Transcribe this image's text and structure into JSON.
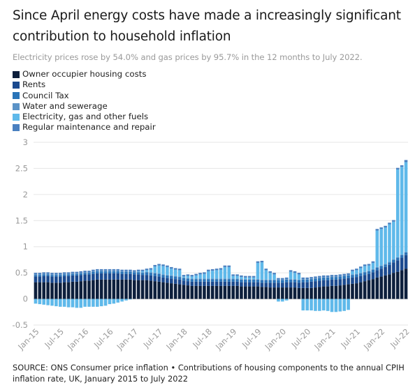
{
  "title": "Since April energy costs have made a increasingly significant contribution to household inflation",
  "subtitle": "Electricity prices rose by 54.0% and gas prices by 95.7% in the 12 months to July 2022.",
  "source": "SOURCE: ONS Consumer price inflation • Contributions of housing components to the annual CPIH inflation rate, UK, January 2015 to July 2022",
  "legend": [
    {
      "name": "Owner occupier housing costs",
      "color": "#0d1f3c"
    },
    {
      "name": "Rents",
      "color": "#1b4a8f"
    },
    {
      "name": "Council Tax",
      "color": "#2a74b8"
    },
    {
      "name": "Water and sewerage",
      "color": "#5b93c7"
    },
    {
      "name": "Electricity, gas and other fuels",
      "color": "#5fb9ea"
    },
    {
      "name": "Regular maintenance and repair",
      "color": "#4a80c0"
    }
  ],
  "chart_data": {
    "type": "bar",
    "stacked": true,
    "ylim": [
      -0.5,
      3
    ],
    "yticks": [
      -0.5,
      0,
      0.5,
      1,
      1.5,
      2,
      2.5,
      3
    ],
    "ytick_labels": [
      "-0.5",
      "0",
      "0.5",
      "1",
      "1.5",
      "2",
      "2.5",
      "3"
    ],
    "grid": true,
    "xtick_labels": [
      {
        "label": "Jan-15",
        "index": 0
      },
      {
        "label": "Jul-15",
        "index": 6
      },
      {
        "label": "Jan-16",
        "index": 12
      },
      {
        "label": "Jul-16",
        "index": 18
      },
      {
        "label": "Jan-17",
        "index": 24
      },
      {
        "label": "Jul-17",
        "index": 30
      },
      {
        "label": "Jan-18",
        "index": 36
      },
      {
        "label": "Jul-18",
        "index": 42
      },
      {
        "label": "Jan-19",
        "index": 48
      },
      {
        "label": "Jul-19",
        "index": 54
      },
      {
        "label": "Jan-20",
        "index": 60
      },
      {
        "label": "Jul-20",
        "index": 66
      },
      {
        "label": "Jan-21",
        "index": 72
      },
      {
        "label": "Jul-21",
        "index": 78
      },
      {
        "label": "Jan-22",
        "index": 84
      },
      {
        "label": "Jul-22",
        "index": 90
      }
    ],
    "series": [
      {
        "name": "Owner occupier housing costs",
        "color": "#0d1f3c",
        "values": [
          0.32,
          0.32,
          0.32,
          0.32,
          0.31,
          0.31,
          0.31,
          0.32,
          0.32,
          0.33,
          0.33,
          0.34,
          0.35,
          0.35,
          0.36,
          0.37,
          0.37,
          0.37,
          0.37,
          0.37,
          0.37,
          0.37,
          0.37,
          0.37,
          0.36,
          0.36,
          0.36,
          0.36,
          0.35,
          0.34,
          0.33,
          0.32,
          0.31,
          0.3,
          0.29,
          0.28,
          0.27,
          0.26,
          0.25,
          0.25,
          0.25,
          0.25,
          0.25,
          0.25,
          0.25,
          0.25,
          0.25,
          0.25,
          0.25,
          0.25,
          0.24,
          0.24,
          0.24,
          0.24,
          0.24,
          0.23,
          0.23,
          0.22,
          0.22,
          0.22,
          0.22,
          0.22,
          0.22,
          0.22,
          0.21,
          0.21,
          0.21,
          0.21,
          0.22,
          0.23,
          0.24,
          0.24,
          0.25,
          0.25,
          0.26,
          0.27,
          0.28,
          0.29,
          0.3,
          0.32,
          0.34,
          0.36,
          0.38,
          0.41,
          0.43,
          0.45,
          0.47,
          0.5,
          0.52,
          0.55,
          0.58
        ]
      },
      {
        "name": "Rents",
        "color": "#1b4a8f",
        "values": [
          0.11,
          0.11,
          0.12,
          0.12,
          0.12,
          0.12,
          0.12,
          0.12,
          0.12,
          0.12,
          0.12,
          0.12,
          0.12,
          0.12,
          0.12,
          0.12,
          0.12,
          0.12,
          0.12,
          0.12,
          0.12,
          0.11,
          0.11,
          0.11,
          0.11,
          0.11,
          0.1,
          0.1,
          0.1,
          0.1,
          0.1,
          0.09,
          0.09,
          0.09,
          0.09,
          0.09,
          0.08,
          0.08,
          0.08,
          0.08,
          0.08,
          0.08,
          0.08,
          0.08,
          0.08,
          0.08,
          0.08,
          0.08,
          0.08,
          0.08,
          0.08,
          0.08,
          0.08,
          0.08,
          0.08,
          0.08,
          0.08,
          0.09,
          0.09,
          0.09,
          0.09,
          0.1,
          0.1,
          0.1,
          0.1,
          0.11,
          0.11,
          0.12,
          0.12,
          0.12,
          0.12,
          0.12,
          0.12,
          0.12,
          0.12,
          0.12,
          0.12,
          0.12,
          0.12,
          0.12,
          0.12,
          0.12,
          0.13,
          0.14,
          0.15,
          0.16,
          0.18,
          0.2,
          0.22,
          0.24,
          0.26
        ]
      },
      {
        "name": "Council Tax",
        "color": "#2a74b8",
        "values": [
          0.03,
          0.03,
          0.03,
          0.03,
          0.03,
          0.03,
          0.03,
          0.03,
          0.03,
          0.03,
          0.03,
          0.03,
          0.03,
          0.03,
          0.04,
          0.04,
          0.04,
          0.04,
          0.04,
          0.04,
          0.04,
          0.04,
          0.04,
          0.04,
          0.04,
          0.04,
          0.04,
          0.05,
          0.05,
          0.05,
          0.05,
          0.05,
          0.05,
          0.05,
          0.05,
          0.05,
          0.05,
          0.05,
          0.05,
          0.05,
          0.05,
          0.05,
          0.05,
          0.05,
          0.05,
          0.05,
          0.05,
          0.05,
          0.05,
          0.05,
          0.05,
          0.05,
          0.05,
          0.05,
          0.05,
          0.05,
          0.05,
          0.05,
          0.05,
          0.05,
          0.05,
          0.05,
          0.05,
          0.05,
          0.05,
          0.05,
          0.05,
          0.05,
          0.05,
          0.05,
          0.05,
          0.05,
          0.05,
          0.05,
          0.05,
          0.05,
          0.05,
          0.05,
          0.05,
          0.05,
          0.05,
          0.05,
          0.05,
          0.05,
          0.05,
          0.05,
          0.05,
          0.05,
          0.05,
          0.05,
          0.05
        ]
      },
      {
        "name": "Water and sewerage",
        "color": "#5b93c7",
        "values": [
          0.01,
          0.01,
          0.01,
          0.01,
          0.01,
          0.01,
          0.01,
          0.01,
          0.01,
          0.01,
          0.01,
          0.01,
          0.01,
          0.01,
          0.01,
          0.01,
          0.01,
          0.01,
          0.01,
          0.01,
          0.01,
          0.01,
          0.01,
          0.01,
          0.01,
          0.01,
          0.01,
          0.01,
          0.01,
          0.01,
          0.01,
          0.01,
          0.01,
          0.01,
          0.01,
          0.01,
          0.01,
          0.01,
          0.01,
          0.01,
          0.01,
          0.01,
          0.01,
          0.01,
          0.01,
          0.01,
          0.01,
          0.01,
          0.01,
          0.01,
          0.01,
          0.01,
          0.01,
          0.01,
          0.01,
          0.01,
          0.01,
          0.01,
          0.01,
          0.01,
          0.01,
          0.01,
          0.01,
          0.01,
          0.01,
          0.01,
          0.01,
          0.01,
          0.01,
          0.01,
          0.01,
          0.01,
          0.01,
          0.01,
          0.01,
          0.01,
          0.01,
          0.01,
          0.01,
          0.01,
          0.01,
          0.01,
          0.01,
          0.01,
          0.01,
          0.01,
          0.01,
          0.01,
          0.01,
          0.01,
          0.01
        ]
      },
      {
        "name": "Electricity, gas and other fuels",
        "color": "#5fb9ea",
        "values": [
          -0.09,
          -0.1,
          -0.11,
          -0.12,
          -0.13,
          -0.14,
          -0.15,
          -0.15,
          -0.16,
          -0.16,
          -0.17,
          -0.17,
          -0.15,
          -0.15,
          -0.15,
          -0.15,
          -0.14,
          -0.13,
          -0.1,
          -0.09,
          -0.07,
          -0.05,
          -0.03,
          -0.01,
          0.0,
          0.01,
          0.02,
          0.03,
          0.05,
          0.12,
          0.15,
          0.16,
          0.15,
          0.13,
          0.12,
          0.12,
          0.02,
          0.04,
          0.04,
          0.06,
          0.08,
          0.09,
          0.14,
          0.15,
          0.16,
          0.17,
          0.22,
          0.22,
          0.05,
          0.05,
          0.04,
          0.03,
          0.03,
          0.03,
          0.31,
          0.33,
          0.18,
          0.13,
          0.1,
          -0.05,
          -0.05,
          -0.03,
          0.14,
          0.12,
          0.1,
          -0.22,
          -0.22,
          -0.22,
          -0.23,
          -0.23,
          -0.22,
          -0.23,
          -0.25,
          -0.25,
          -0.24,
          -0.23,
          -0.21,
          0.06,
          0.07,
          0.09,
          0.11,
          0.1,
          0.12,
          0.7,
          0.7,
          0.7,
          0.72,
          0.72,
          1.68,
          1.68,
          1.72
        ]
      },
      {
        "name": "Regular maintenance and repair",
        "color": "#4a80c0",
        "values": [
          0.03,
          0.03,
          0.03,
          0.03,
          0.03,
          0.03,
          0.03,
          0.03,
          0.03,
          0.03,
          0.03,
          0.03,
          0.03,
          0.03,
          0.03,
          0.03,
          0.03,
          0.03,
          0.03,
          0.03,
          0.03,
          0.03,
          0.03,
          0.03,
          0.03,
          0.03,
          0.03,
          0.03,
          0.03,
          0.03,
          0.03,
          0.03,
          0.03,
          0.03,
          0.03,
          0.03,
          0.03,
          0.03,
          0.03,
          0.03,
          0.03,
          0.03,
          0.03,
          0.03,
          0.03,
          0.03,
          0.03,
          0.03,
          0.03,
          0.03,
          0.03,
          0.03,
          0.03,
          0.03,
          0.03,
          0.03,
          0.03,
          0.03,
          0.03,
          0.03,
          0.03,
          0.03,
          0.03,
          0.03,
          0.03,
          0.03,
          0.03,
          0.03,
          0.03,
          0.03,
          0.03,
          0.03,
          0.03,
          0.03,
          0.03,
          0.03,
          0.03,
          0.03,
          0.03,
          0.03,
          0.03,
          0.03,
          0.03,
          0.03,
          0.03,
          0.03,
          0.03,
          0.03,
          0.03,
          0.03,
          0.04
        ]
      }
    ]
  }
}
